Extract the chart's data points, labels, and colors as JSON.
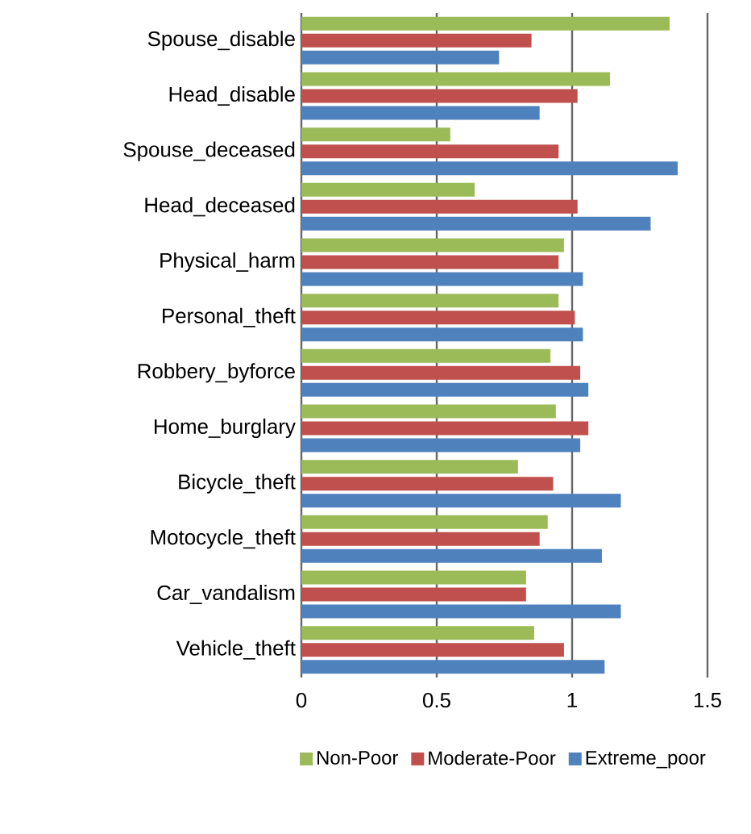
{
  "chart_data": {
    "type": "bar",
    "orientation": "horizontal",
    "categories": [
      "Spouse_disable",
      "Head_disable",
      "Spouse_deceased",
      "Head_deceased",
      "Physical_harm",
      "Personal_theft",
      "Robbery_byforce",
      "Home_burglary",
      "Bicycle_theft",
      "Motocycle_theft",
      "Car_vandalism",
      "Vehicle_theft"
    ],
    "series": [
      {
        "name": "Non-Poor",
        "color": "#9bbb59",
        "values": [
          1.36,
          1.14,
          0.55,
          0.64,
          0.97,
          0.95,
          0.92,
          0.94,
          0.8,
          0.91,
          0.83,
          0.86
        ]
      },
      {
        "name": "Moderate-Poor",
        "color": "#c0504d",
        "values": [
          0.85,
          1.02,
          0.95,
          1.02,
          0.95,
          1.01,
          1.03,
          1.06,
          0.93,
          0.88,
          0.83,
          0.97
        ]
      },
      {
        "name": "Extreme_poor",
        "color": "#4f81bd",
        "values": [
          0.73,
          0.88,
          1.39,
          1.29,
          1.04,
          1.04,
          1.06,
          1.03,
          1.18,
          1.11,
          1.18,
          1.12
        ]
      }
    ],
    "xlim": [
      0,
      1.5
    ],
    "xticks": [
      0,
      0.5,
      1,
      1.5
    ],
    "grid": "x",
    "legend": "bottom"
  }
}
